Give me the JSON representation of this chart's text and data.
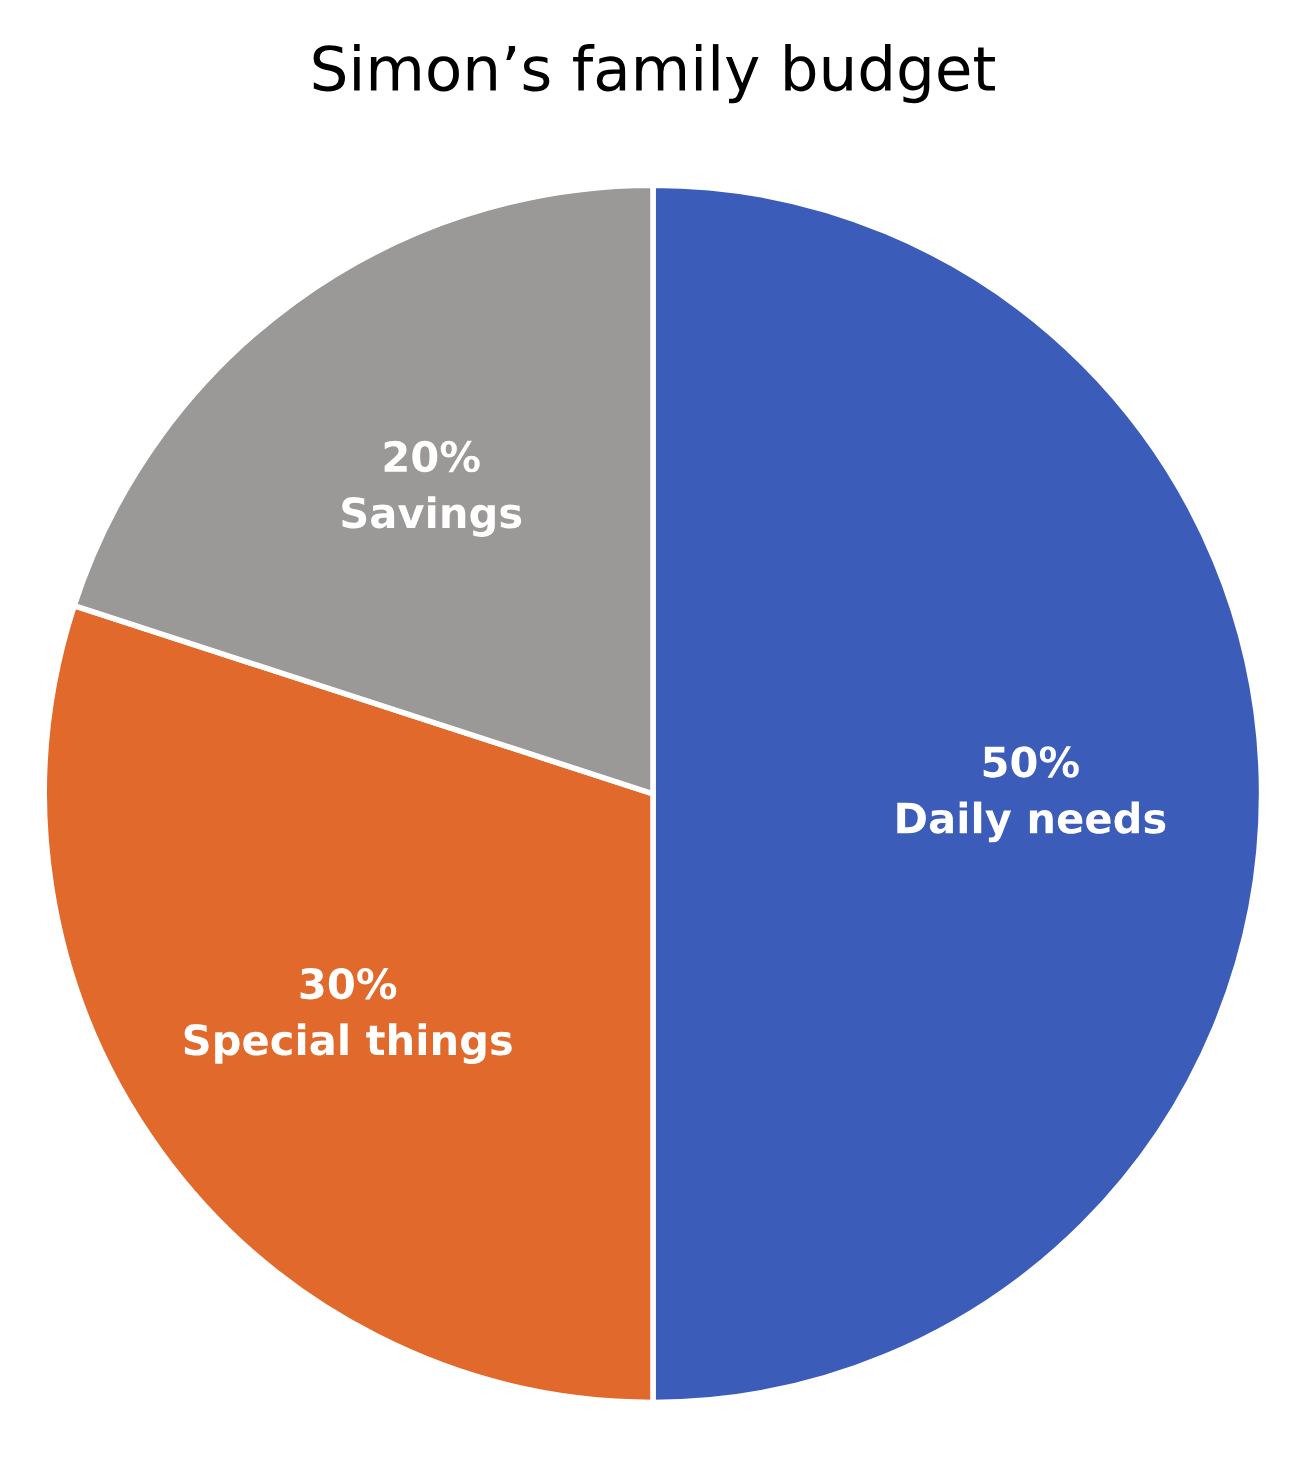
{
  "chart_data": {
    "type": "pie",
    "title": "Simon’s family budget",
    "categories": [
      "Daily needs",
      "Special things",
      "Savings"
    ],
    "values": [
      50,
      30,
      20
    ],
    "value_labels": [
      "50%",
      "30%",
      "20%"
    ],
    "colors": [
      "#3b5cb8",
      "#e0692b",
      "#9b9997"
    ]
  }
}
